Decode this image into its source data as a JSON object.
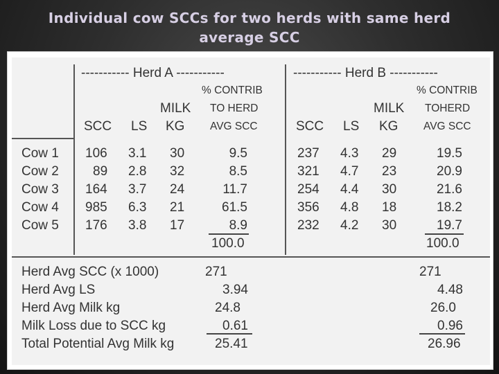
{
  "title": {
    "line1": "Individual cow SCCs for two herds with same herd",
    "line2": "average SCC"
  },
  "herd_a": {
    "banner": "----------- Herd A -----------",
    "contrib_header": [
      "% CONTRIB",
      "TO HERD",
      "AVG SCC"
    ],
    "milk_header": [
      "MILK",
      "KG"
    ],
    "scc_header": "SCC",
    "ls_header": "LS",
    "rows": [
      {
        "scc": "106",
        "ls": "3.1",
        "milk": "30",
        "contrib": "9.5"
      },
      {
        "scc": "89",
        "ls": "2.8",
        "milk": "32",
        "contrib": "8.5"
      },
      {
        "scc": "164",
        "ls": "3.7",
        "milk": "24",
        "contrib": "11.7"
      },
      {
        "scc": "985",
        "ls": "6.3",
        "milk": "21",
        "contrib": "61.5"
      },
      {
        "scc": "176",
        "ls": "3.8",
        "milk": "17",
        "contrib": "8.9"
      }
    ],
    "contrib_total": "100.0",
    "summary": [
      "271",
      "3.94",
      "24.8",
      "0.61",
      "25.41"
    ]
  },
  "herd_b": {
    "banner": "----------- Herd B -----------",
    "contrib_header": [
      "% CONTRIB",
      "TOHERD",
      "AVG SCC"
    ],
    "milk_header": [
      "MILK",
      "KG"
    ],
    "scc_header": "SCC",
    "ls_header": "LS",
    "rows": [
      {
        "scc": "237",
        "ls": "4.3",
        "milk": "29",
        "contrib": "19.5"
      },
      {
        "scc": "321",
        "ls": "4.7",
        "milk": "23",
        "contrib": "20.9"
      },
      {
        "scc": "254",
        "ls": "4.4",
        "milk": "30",
        "contrib": "21.6"
      },
      {
        "scc": "356",
        "ls": "4.8",
        "milk": "18",
        "contrib": "18.2"
      },
      {
        "scc": "232",
        "ls": "4.2",
        "milk": "30",
        "contrib": "19.7"
      }
    ],
    "contrib_total": "100.0",
    "summary": [
      "271",
      "4.48",
      "26.0",
      "0.96",
      "26.96"
    ]
  },
  "cow_labels": [
    "Cow 1",
    "Cow 2",
    "Cow 3",
    "Cow 4",
    "Cow 5"
  ],
  "summary_labels": [
    "Herd Avg SCC (x 1000)",
    "Herd Avg LS",
    "Herd Avg Milk kg",
    "Milk Loss due to SCC kg",
    "Total Potential Avg Milk kg"
  ]
}
